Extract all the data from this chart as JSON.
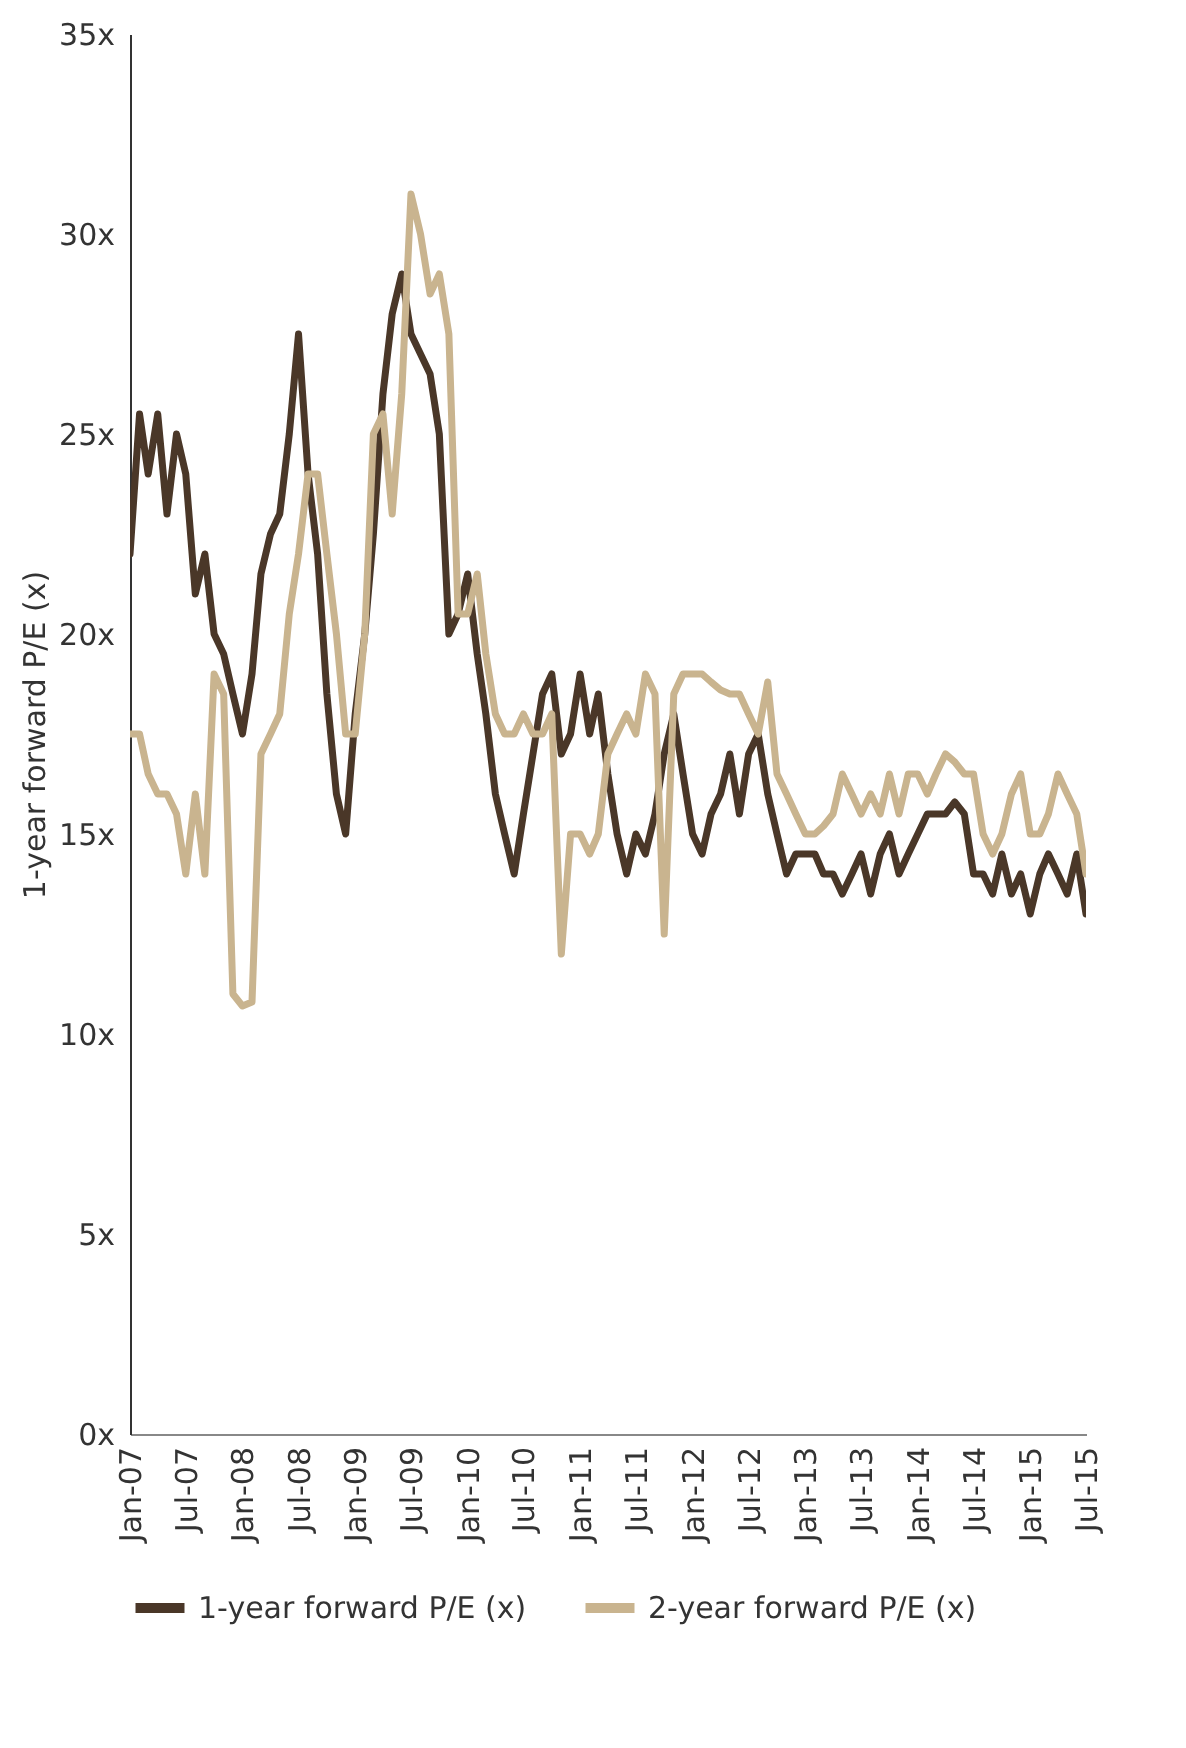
{
  "chart_data": {
    "type": "line",
    "ylabel": "1-year forward P/E (x)",
    "x": [
      "2007-01",
      "2007-02",
      "2007-03",
      "2007-04",
      "2007-05",
      "2007-06",
      "2007-07",
      "2007-08",
      "2007-09",
      "2007-10",
      "2007-11",
      "2007-12",
      "2008-01",
      "2008-02",
      "2008-03",
      "2008-04",
      "2008-05",
      "2008-06",
      "2008-07",
      "2008-08",
      "2008-09",
      "2008-10",
      "2008-11",
      "2008-12",
      "2009-01",
      "2009-02",
      "2009-03",
      "2009-04",
      "2009-05",
      "2009-06",
      "2009-07",
      "2009-08",
      "2009-09",
      "2009-10",
      "2009-11",
      "2009-12",
      "2010-01",
      "2010-02",
      "2010-03",
      "2010-04",
      "2010-05",
      "2010-06",
      "2010-07",
      "2010-08",
      "2010-09",
      "2010-10",
      "2010-11",
      "2010-12",
      "2011-01",
      "2011-02",
      "2011-03",
      "2011-04",
      "2011-05",
      "2011-06",
      "2011-07",
      "2011-08",
      "2011-09",
      "2011-10",
      "2011-11",
      "2011-12",
      "2012-01",
      "2012-02",
      "2012-03",
      "2012-04",
      "2012-05",
      "2012-06",
      "2012-07",
      "2012-08",
      "2012-09",
      "2012-10",
      "2012-11",
      "2012-12",
      "2013-01",
      "2013-02",
      "2013-03",
      "2013-04",
      "2013-05",
      "2013-06",
      "2013-07",
      "2013-08",
      "2013-09",
      "2013-10",
      "2013-11",
      "2013-12",
      "2014-01",
      "2014-02",
      "2014-03",
      "2014-04",
      "2014-05",
      "2014-06",
      "2014-07",
      "2014-08",
      "2014-09",
      "2014-10",
      "2014-11",
      "2014-12",
      "2015-01",
      "2015-02",
      "2015-03",
      "2015-04",
      "2015-05",
      "2015-06",
      "2015-07"
    ],
    "series": [
      {
        "name": "1-year forward P/E (x)",
        "color": "#4a3728",
        "values": [
          22,
          25.5,
          24,
          25.5,
          23,
          25,
          24,
          21,
          22,
          20,
          19.5,
          18.5,
          17.5,
          19,
          21.5,
          22.5,
          23,
          25,
          27.5,
          24,
          22,
          18.5,
          16,
          15,
          18,
          20,
          22.5,
          26,
          28,
          29,
          27.5,
          27,
          26.5,
          25,
          20,
          20.5,
          21.5,
          19.5,
          18,
          16,
          15,
          14,
          15.5,
          17,
          18.5,
          19,
          17,
          17.5,
          19,
          17.5,
          18.5,
          16.5,
          15,
          14,
          15,
          14.5,
          15.5,
          17,
          18,
          16.5,
          15,
          14.5,
          15.5,
          16,
          17,
          15.5,
          17,
          17.5,
          16,
          15,
          14,
          14.5,
          14.5,
          14.5,
          14,
          14,
          13.5,
          14,
          14.5,
          13.5,
          14.5,
          15,
          14,
          14.5,
          15,
          15.5,
          15.5,
          15.5,
          15.8,
          15.5,
          14,
          14,
          13.5,
          14.5,
          13.5,
          14,
          13,
          14,
          14.5,
          14,
          13.5,
          14.5,
          13
        ]
      },
      {
        "name": "2-year forward P/E (x)",
        "color": "#c9b48f",
        "values": [
          17.5,
          17.5,
          16.5,
          16,
          16,
          15.5,
          14,
          16,
          14,
          19,
          18.5,
          11,
          10.7,
          10.8,
          17,
          17.5,
          18,
          20.5,
          22,
          24,
          24,
          22,
          20,
          17.5,
          17.5,
          20,
          25,
          25.5,
          23,
          26,
          31,
          30,
          28.5,
          29,
          27.5,
          20.5,
          20.5,
          21.5,
          19.5,
          18,
          17.5,
          17.5,
          18,
          17.5,
          17.5,
          18,
          12,
          15,
          15,
          14.5,
          15,
          17,
          17.5,
          18,
          17.5,
          19,
          18.5,
          12.5,
          18.5,
          19,
          19,
          19,
          18.8,
          18.6,
          18.5,
          18.5,
          18,
          17.5,
          18.8,
          16.5,
          16,
          15.5,
          15,
          15,
          15.2,
          15.5,
          16.5,
          16,
          15.5,
          16,
          15.5,
          16.5,
          15.5,
          16.5,
          16.5,
          16,
          16.5,
          17,
          16.8,
          16.5,
          16.5,
          15,
          14.5,
          15,
          16,
          16.5,
          15,
          15,
          15.5,
          16.5,
          16,
          15.5,
          14
        ]
      }
    ],
    "xlim": [
      "2007-01",
      "2015-07"
    ],
    "xticks": [
      {
        "value": "2007-01",
        "label": "Jan-07"
      },
      {
        "value": "2007-07",
        "label": "Jul-07"
      },
      {
        "value": "2008-01",
        "label": "Jan-08"
      },
      {
        "value": "2008-07",
        "label": "Jul-08"
      },
      {
        "value": "2009-01",
        "label": "Jan-09"
      },
      {
        "value": "2009-07",
        "label": "Jul-09"
      },
      {
        "value": "2010-01",
        "label": "Jan-10"
      },
      {
        "value": "2010-07",
        "label": "Jul-10"
      },
      {
        "value": "2011-01",
        "label": "Jan-11"
      },
      {
        "value": "2011-07",
        "label": "Jul-11"
      },
      {
        "value": "2012-01",
        "label": "Jan-12"
      },
      {
        "value": "2012-07",
        "label": "Jul-12"
      },
      {
        "value": "2013-01",
        "label": "Jan-13"
      },
      {
        "value": "2013-07",
        "label": "Jul-13"
      },
      {
        "value": "2014-01",
        "label": "Jan-14"
      },
      {
        "value": "2014-07",
        "label": "Jul-14"
      },
      {
        "value": "2015-01",
        "label": "Jan-15"
      },
      {
        "value": "2015-07",
        "label": "Jul-15"
      }
    ],
    "ylim": [
      0,
      35
    ],
    "yticks": [
      {
        "value": 0,
        "label": "0x"
      },
      {
        "value": 5,
        "label": "5x"
      },
      {
        "value": 10,
        "label": "10x"
      },
      {
        "value": 15,
        "label": "15x"
      },
      {
        "value": 20,
        "label": "20x"
      },
      {
        "value": 25,
        "label": "25x"
      },
      {
        "value": 30,
        "label": "30x"
      },
      {
        "value": 35,
        "label": "35x"
      }
    ],
    "grid": false,
    "legend": "bottom",
    "marker": "none",
    "line_style": "solid"
  }
}
